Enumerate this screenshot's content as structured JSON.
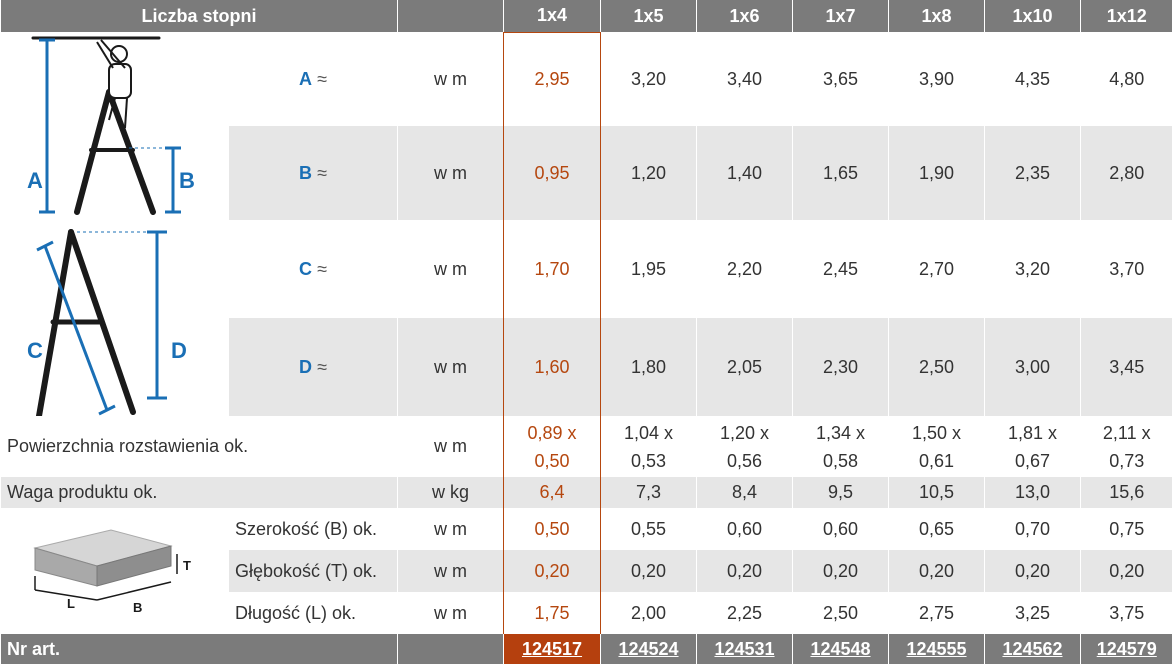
{
  "header": {
    "title": "Liczba stopni",
    "columns": [
      "1x4",
      "1x5",
      "1x6",
      "1x7",
      "1x8",
      "1x10",
      "1x12"
    ]
  },
  "figure_labels": {
    "a": "A",
    "b": "B",
    "c": "C",
    "d": "D",
    "t": "T",
    "l": "L",
    "w": "B"
  },
  "dimensions": [
    {
      "letter": "A",
      "approx": "≈",
      "unit": "w m",
      "values": [
        "2,95",
        "3,20",
        "3,40",
        "3,65",
        "3,90",
        "4,35",
        "4,80"
      ]
    },
    {
      "letter": "B",
      "approx": "≈",
      "unit": "w m",
      "values": [
        "0,95",
        "1,20",
        "1,40",
        "1,65",
        "1,90",
        "2,35",
        "2,80"
      ]
    },
    {
      "letter": "C",
      "approx": "≈",
      "unit": "w m",
      "values": [
        "1,70",
        "1,95",
        "2,20",
        "2,45",
        "2,70",
        "3,20",
        "3,70"
      ]
    },
    {
      "letter": "D",
      "approx": "≈",
      "unit": "w m",
      "values": [
        "1,60",
        "1,80",
        "2,05",
        "2,30",
        "2,50",
        "3,00",
        "3,45"
      ]
    }
  ],
  "area": {
    "label": "Powierzchnia rozstawienia ok.",
    "unit": "w m",
    "values": [
      [
        "0,89 x",
        "0,50"
      ],
      [
        "1,04 x",
        "0,53"
      ],
      [
        "1,20 x",
        "0,56"
      ],
      [
        "1,34 x",
        "0,58"
      ],
      [
        "1,50 x",
        "0,61"
      ],
      [
        "1,81 x",
        "0,67"
      ],
      [
        "2,11 x",
        "0,73"
      ]
    ]
  },
  "weight": {
    "label": "Waga produktu ok.",
    "unit": "w kg",
    "values": [
      "6,4",
      "7,3",
      "8,4",
      "9,5",
      "10,5",
      "13,0",
      "15,6"
    ]
  },
  "packaging": [
    {
      "label": "Szerokość (B) ok.",
      "unit": "w m",
      "values": [
        "0,50",
        "0,55",
        "0,60",
        "0,60",
        "0,65",
        "0,70",
        "0,75"
      ]
    },
    {
      "label": "Głębokość (T) ok.",
      "unit": "w m",
      "values": [
        "0,20",
        "0,20",
        "0,20",
        "0,20",
        "0,20",
        "0,20",
        "0,20"
      ]
    },
    {
      "label": "Długość (L) ok.",
      "unit": "w m",
      "values": [
        "1,75",
        "2,00",
        "2,25",
        "2,50",
        "2,75",
        "3,25",
        "3,75"
      ]
    }
  ],
  "footer": {
    "label": "Nr art.",
    "values": [
      "124517",
      "124524",
      "124531",
      "124548",
      "124555",
      "124562",
      "124579"
    ]
  }
}
